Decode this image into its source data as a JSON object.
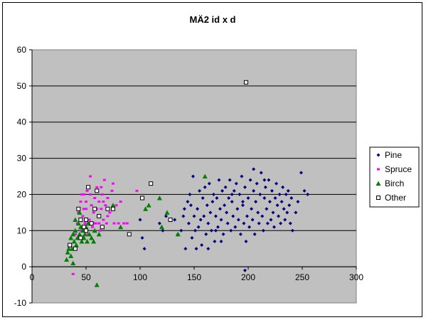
{
  "chart_data": {
    "type": "scatter",
    "title": "MÄ2 id x d",
    "xlabel": "",
    "ylabel": "",
    "xlim": [
      0,
      300
    ],
    "ylim": [
      -10,
      60
    ],
    "xticks": [
      "0",
      "50",
      "100",
      "150",
      "200",
      "250",
      "300"
    ],
    "yticks": [
      "-10",
      "0",
      "10",
      "20",
      "30",
      "40",
      "50",
      "60"
    ],
    "plot_background": "#c0c0c0",
    "gridlines": "horizontal",
    "legend_position": "right",
    "series": [
      {
        "name": "Pine",
        "marker": "diamond",
        "color": "#000080",
        "points": [
          [
            100,
            13
          ],
          [
            102,
            8
          ],
          [
            104,
            5
          ],
          [
            118,
            12
          ],
          [
            121,
            10
          ],
          [
            124,
            14
          ],
          [
            128,
            13
          ],
          [
            132,
            13
          ],
          [
            135,
            9
          ],
          [
            138,
            10
          ],
          [
            140,
            14
          ],
          [
            141,
            16
          ],
          [
            142,
            5
          ],
          [
            144,
            18
          ],
          [
            145,
            12
          ],
          [
            146,
            20
          ],
          [
            147,
            17
          ],
          [
            148,
            8
          ],
          [
            149,
            25
          ],
          [
            150,
            14
          ],
          [
            151,
            10
          ],
          [
            152,
            5
          ],
          [
            153,
            16
          ],
          [
            154,
            11
          ],
          [
            155,
            21
          ],
          [
            156,
            13
          ],
          [
            157,
            6
          ],
          [
            158,
            19
          ],
          [
            159,
            14
          ],
          [
            160,
            22
          ],
          [
            161,
            9
          ],
          [
            162,
            17
          ],
          [
            163,
            12
          ],
          [
            164,
            23
          ],
          [
            165,
            15
          ],
          [
            166,
            10
          ],
          [
            167,
            18
          ],
          [
            168,
            20
          ],
          [
            169,
            7
          ],
          [
            170,
            14
          ],
          [
            171,
            19
          ],
          [
            172,
            11
          ],
          [
            173,
            24
          ],
          [
            174,
            16
          ],
          [
            175,
            13
          ],
          [
            176,
            21
          ],
          [
            177,
            9
          ],
          [
            178,
            17
          ],
          [
            179,
            22
          ],
          [
            180,
            15
          ],
          [
            181,
            12
          ],
          [
            182,
            19
          ],
          [
            183,
            24
          ],
          [
            184,
            10
          ],
          [
            185,
            18
          ],
          [
            186,
            14
          ],
          [
            187,
            21
          ],
          [
            188,
            11
          ],
          [
            189,
            23
          ],
          [
            190,
            16
          ],
          [
            191,
            13
          ],
          [
            192,
            20
          ],
          [
            193,
            9
          ],
          [
            194,
            25
          ],
          [
            195,
            17
          ],
          [
            196,
            12
          ],
          [
            197,
            22
          ],
          [
            198,
            7
          ],
          [
            199,
            14
          ],
          [
            200,
            19
          ],
          [
            201,
            11
          ],
          [
            202,
            24
          ],
          [
            203,
            16
          ],
          [
            204,
            13
          ],
          [
            205,
            21
          ],
          [
            206,
            9
          ],
          [
            207,
            18
          ],
          [
            208,
            23
          ],
          [
            209,
            15
          ],
          [
            210,
            12
          ],
          [
            211,
            20
          ],
          [
            212,
            26
          ],
          [
            213,
            14
          ],
          [
            214,
            10
          ],
          [
            215,
            19
          ],
          [
            216,
            22
          ],
          [
            217,
            16
          ],
          [
            218,
            12
          ],
          [
            219,
            24
          ],
          [
            220,
            18
          ],
          [
            221,
            13
          ],
          [
            222,
            21
          ],
          [
            223,
            15
          ],
          [
            224,
            11
          ],
          [
            225,
            19
          ],
          [
            226,
            23
          ],
          [
            227,
            17
          ],
          [
            228,
            14
          ],
          [
            229,
            20
          ],
          [
            230,
            12
          ],
          [
            231,
            18
          ],
          [
            232,
            22
          ],
          [
            233,
            16
          ],
          [
            234,
            13
          ],
          [
            235,
            20
          ],
          [
            236,
            15
          ],
          [
            237,
            21
          ],
          [
            238,
            17
          ],
          [
            239,
            12
          ],
          [
            240,
            19
          ],
          [
            241,
            10
          ],
          [
            244,
            15
          ],
          [
            246,
            18
          ],
          [
            249,
            26
          ],
          [
            252,
            21
          ],
          [
            255,
            20
          ],
          [
            197,
            -1
          ],
          [
            170,
            10
          ],
          [
            175,
            7
          ],
          [
            163,
            5
          ],
          [
            195,
            18
          ],
          [
            205,
            27
          ],
          [
            185,
            20
          ],
          [
            215,
            24
          ]
        ]
      },
      {
        "name": "Spruce",
        "marker": "square",
        "color": "#ff00ff",
        "points": [
          [
            38,
            -2
          ],
          [
            40,
            9
          ],
          [
            42,
            12
          ],
          [
            43,
            15
          ],
          [
            44,
            8
          ],
          [
            45,
            18
          ],
          [
            46,
            10
          ],
          [
            47,
            14
          ],
          [
            48,
            20
          ],
          [
            49,
            12
          ],
          [
            50,
            16
          ],
          [
            51,
            21
          ],
          [
            52,
            9
          ],
          [
            53,
            13
          ],
          [
            54,
            25
          ],
          [
            55,
            17
          ],
          [
            56,
            11
          ],
          [
            57,
            15
          ],
          [
            58,
            19
          ],
          [
            59,
            12
          ],
          [
            60,
            22
          ],
          [
            61,
            14
          ],
          [
            62,
            18
          ],
          [
            63,
            10
          ],
          [
            64,
            16
          ],
          [
            65,
            20
          ],
          [
            66,
            13
          ],
          [
            67,
            24
          ],
          [
            68,
            17
          ],
          [
            69,
            12
          ],
          [
            70,
            19
          ],
          [
            72,
            15
          ],
          [
            74,
            21
          ],
          [
            76,
            12
          ],
          [
            78,
            17
          ],
          [
            80,
            12
          ],
          [
            82,
            18
          ],
          [
            85,
            12
          ],
          [
            88,
            12
          ],
          [
            97,
            21
          ],
          [
            55,
            12
          ],
          [
            58,
            12
          ],
          [
            52,
            12
          ],
          [
            62,
            12
          ],
          [
            66,
            18
          ],
          [
            48,
            16
          ],
          [
            50,
            18
          ],
          [
            60,
            16
          ],
          [
            70,
            14
          ],
          [
            75,
            23
          ],
          [
            46,
            20
          ],
          [
            54,
            20
          ],
          [
            64,
            22
          ]
        ]
      },
      {
        "name": "Birch",
        "marker": "triangle",
        "color": "#008000",
        "points": [
          [
            32,
            2
          ],
          [
            33,
            4
          ],
          [
            34,
            5
          ],
          [
            35,
            6
          ],
          [
            36,
            8
          ],
          [
            37,
            5
          ],
          [
            38,
            9
          ],
          [
            39,
            7
          ],
          [
            40,
            10
          ],
          [
            41,
            6
          ],
          [
            42,
            8
          ],
          [
            43,
            12
          ],
          [
            44,
            9
          ],
          [
            45,
            11
          ],
          [
            46,
            7
          ],
          [
            47,
            10
          ],
          [
            48,
            8
          ],
          [
            49,
            9
          ],
          [
            50,
            11
          ],
          [
            51,
            7
          ],
          [
            52,
            12
          ],
          [
            53,
            9
          ],
          [
            55,
            8
          ],
          [
            57,
            7
          ],
          [
            58,
            10
          ],
          [
            60,
            -5
          ],
          [
            62,
            9
          ],
          [
            65,
            11
          ],
          [
            75,
            17
          ],
          [
            82,
            11
          ],
          [
            105,
            16
          ],
          [
            108,
            17
          ],
          [
            118,
            19
          ],
          [
            120,
            11
          ],
          [
            125,
            15
          ],
          [
            135,
            9
          ],
          [
            160,
            25
          ],
          [
            38,
            1
          ],
          [
            40,
            13
          ],
          [
            44,
            15
          ],
          [
            36,
            3
          ]
        ]
      },
      {
        "name": "Other",
        "marker": "open-square",
        "color": "#000000",
        "points": [
          [
            35,
            6
          ],
          [
            40,
            5
          ],
          [
            43,
            16
          ],
          [
            45,
            8
          ],
          [
            48,
            11
          ],
          [
            50,
            13
          ],
          [
            52,
            22
          ],
          [
            55,
            12
          ],
          [
            58,
            16
          ],
          [
            60,
            21
          ],
          [
            62,
            14
          ],
          [
            65,
            11
          ],
          [
            70,
            16
          ],
          [
            75,
            16
          ],
          [
            90,
            9
          ],
          [
            102,
            19
          ],
          [
            110,
            23
          ],
          [
            128,
            13
          ],
          [
            198,
            51
          ],
          [
            50,
            10
          ],
          [
            45,
            13
          ]
        ]
      }
    ]
  }
}
